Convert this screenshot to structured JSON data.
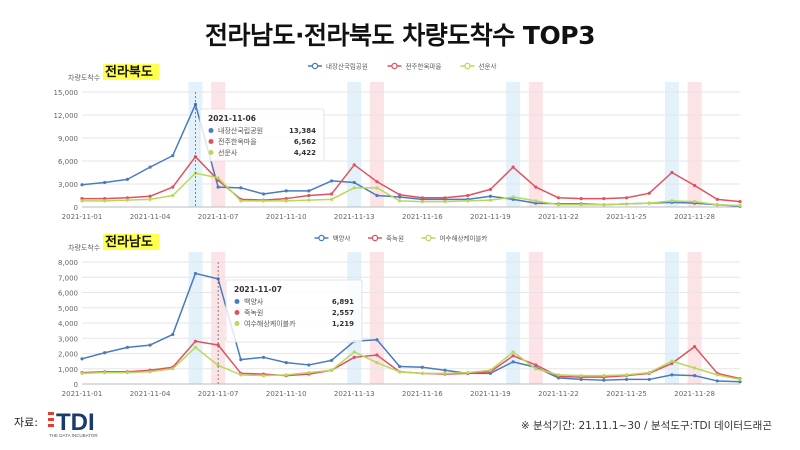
{
  "title": "전라남도·전라북도 차량도착수 TOP3",
  "footer": {
    "source_label": "자료:",
    "logo_main": "TDI",
    "logo_sub": "THE DATA INCUBATOR",
    "note": "※ 분석기간: 21.11.1~30 / 분석도구:TDI 데이터드래곤"
  },
  "colors": {
    "highlight_yellow": "#ffff4d",
    "weekend_blue": "#e3f1fb",
    "weekend_pink": "#fbe3e6"
  },
  "chart_data": [
    {
      "type": "line",
      "region_label": "전라북도",
      "ylabel": "차량도착수",
      "ylim": [
        0,
        15000
      ],
      "yticks": [
        0,
        3000,
        6000,
        9000,
        12000,
        15000
      ],
      "ytick_labels": [
        "0",
        "3,000",
        "6,000",
        "9,000",
        "12,000",
        "15,000"
      ],
      "x": [
        "2021-11-01",
        "2021-11-02",
        "2021-11-03",
        "2021-11-04",
        "2021-11-05",
        "2021-11-06",
        "2021-11-07",
        "2021-11-08",
        "2021-11-09",
        "2021-11-10",
        "2021-11-11",
        "2021-11-12",
        "2021-11-13",
        "2021-11-14",
        "2021-11-15",
        "2021-11-16",
        "2021-11-17",
        "2021-11-18",
        "2021-11-19",
        "2021-11-20",
        "2021-11-21",
        "2021-11-22",
        "2021-11-23",
        "2021-11-24",
        "2021-11-25",
        "2021-11-26",
        "2021-11-27",
        "2021-11-28",
        "2021-11-29",
        "2021-11-30"
      ],
      "xtick_labels": [
        "2021-11-01",
        "2021-11-04",
        "2021-11-07",
        "2021-11-10",
        "2021-11-13",
        "2021-11-16",
        "2021-11-19",
        "2021-11-22",
        "2021-11-25",
        "2021-11-28"
      ],
      "series": [
        {
          "name": "내장산국립공원",
          "color": "#4a7ac0",
          "values": [
            2900,
            3200,
            3600,
            5200,
            6700,
            13384,
            2600,
            2500,
            1700,
            2100,
            2100,
            3400,
            3200,
            1500,
            1300,
            1000,
            1000,
            1000,
            1400,
            1000,
            500,
            400,
            400,
            300,
            400,
            500,
            600,
            500,
            300,
            100
          ]
        },
        {
          "name": "전주한옥마을",
          "color": "#e0525f",
          "values": [
            1100,
            1100,
            1200,
            1400,
            2600,
            6562,
            3500,
            1000,
            900,
            1100,
            1500,
            1700,
            5500,
            3300,
            1600,
            1200,
            1200,
            1500,
            2300,
            5200,
            2600,
            1200,
            1100,
            1100,
            1200,
            1800,
            4500,
            2800,
            1000,
            700
          ]
        },
        {
          "name": "선운사",
          "color": "#b9d85a",
          "values": [
            800,
            800,
            900,
            1000,
            1500,
            4422,
            3800,
            800,
            800,
            800,
            900,
            1000,
            2500,
            2500,
            800,
            700,
            700,
            800,
            900,
            1300,
            800,
            300,
            300,
            300,
            400,
            500,
            800,
            700,
            300,
            200
          ]
        }
      ],
      "tooltip": {
        "date": "2021-11-06",
        "rows": [
          {
            "name": "내장산국립공원",
            "value": "13,384"
          },
          {
            "name": "전주한옥마을",
            "value": "6,562"
          },
          {
            "name": "선운사",
            "value": "4,422"
          }
        ]
      },
      "blue_bands": [
        "2021-11-06",
        "2021-11-13",
        "2021-11-20",
        "2021-11-27"
      ],
      "pink_bands": [
        "2021-11-07",
        "2021-11-14",
        "2021-11-21",
        "2021-11-28"
      ]
    },
    {
      "type": "line",
      "region_label": "전라남도",
      "ylabel": "차량도착수",
      "ylim": [
        0,
        8000
      ],
      "yticks": [
        0,
        1000,
        2000,
        3000,
        4000,
        5000,
        6000,
        7000,
        8000
      ],
      "ytick_labels": [
        "0",
        "1,000",
        "2,000",
        "3,000",
        "4,000",
        "5,000",
        "6,000",
        "7,000",
        "8,000"
      ],
      "x": [
        "2021-11-01",
        "2021-11-02",
        "2021-11-03",
        "2021-11-04",
        "2021-11-05",
        "2021-11-06",
        "2021-11-07",
        "2021-11-08",
        "2021-11-09",
        "2021-11-10",
        "2021-11-11",
        "2021-11-12",
        "2021-11-13",
        "2021-11-14",
        "2021-11-15",
        "2021-11-16",
        "2021-11-17",
        "2021-11-18",
        "2021-11-19",
        "2021-11-20",
        "2021-11-21",
        "2021-11-22",
        "2021-11-23",
        "2021-11-24",
        "2021-11-25",
        "2021-11-26",
        "2021-11-27",
        "2021-11-28",
        "2021-11-29",
        "2021-11-30"
      ],
      "xtick_labels": [
        "2021-11-01",
        "2021-11-04",
        "2021-11-07",
        "2021-11-10",
        "2021-11-13",
        "2021-11-16",
        "2021-11-19",
        "2021-11-22",
        "2021-11-25",
        "2021-11-28"
      ],
      "series": [
        {
          "name": "백양사",
          "color": "#4a7ac0",
          "values": [
            1650,
            2050,
            2400,
            2550,
            3250,
            7250,
            6891,
            1600,
            1750,
            1400,
            1250,
            1550,
            2800,
            2900,
            1150,
            1100,
            900,
            700,
            700,
            1450,
            1100,
            400,
            300,
            250,
            300,
            300,
            600,
            550,
            200,
            150
          ]
        },
        {
          "name": "죽녹원",
          "color": "#e0525f",
          "values": [
            750,
            800,
            800,
            900,
            1100,
            2800,
            2557,
            700,
            650,
            550,
            650,
            900,
            1750,
            1900,
            800,
            700,
            650,
            700,
            800,
            1850,
            1250,
            500,
            450,
            450,
            550,
            700,
            1350,
            2450,
            700,
            350
          ]
        },
        {
          "name": "여수해상케이블카",
          "color": "#b9d85a",
          "values": [
            700,
            750,
            750,
            800,
            1000,
            2400,
            1219,
            600,
            550,
            600,
            750,
            900,
            2100,
            1400,
            800,
            700,
            700,
            750,
            900,
            2100,
            1000,
            600,
            550,
            550,
            600,
            750,
            1500,
            1050,
            600,
            300
          ]
        }
      ],
      "tooltip": {
        "date": "2021-11-07",
        "rows": [
          {
            "name": "백양사",
            "value": "6,891"
          },
          {
            "name": "죽녹원",
            "value": "2,557"
          },
          {
            "name": "여수해상케이블카",
            "value": "1,219"
          }
        ]
      },
      "blue_bands": [
        "2021-11-06",
        "2021-11-13",
        "2021-11-20",
        "2021-11-27"
      ],
      "pink_bands": [
        "2021-11-07",
        "2021-11-14",
        "2021-11-21",
        "2021-11-28"
      ]
    }
  ]
}
